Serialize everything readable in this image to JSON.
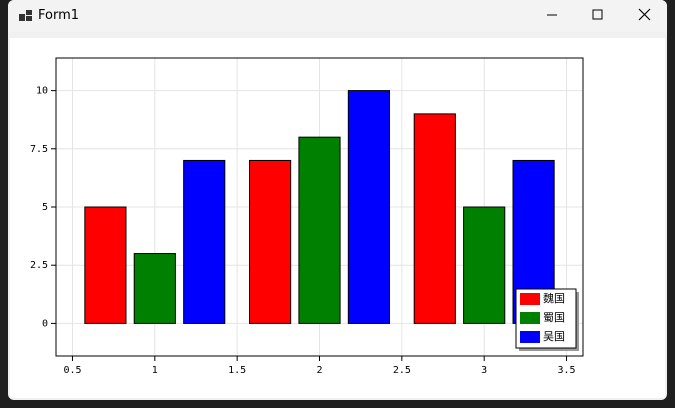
{
  "window": {
    "title": "Form1"
  },
  "chart_data": {
    "type": "bar",
    "x": [
      1,
      2,
      3
    ],
    "series": [
      {
        "name": "魏国",
        "color": "#ff0000",
        "values": [
          5,
          7,
          9
        ]
      },
      {
        "name": "蜀国",
        "color": "#008000",
        "values": [
          3,
          8,
          5
        ]
      },
      {
        "name": "吴国",
        "color": "#0000ff",
        "values": [
          7,
          10,
          7
        ]
      }
    ],
    "xlim": [
      0.4,
      3.6
    ],
    "xticks": [
      0.5,
      1,
      1.5,
      2,
      2.5,
      3,
      3.5
    ],
    "ylim": [
      -1.4,
      11.4
    ],
    "yticks": [
      0,
      2.5,
      5,
      7.5,
      10
    ],
    "grid": true,
    "legend": "bottom-right"
  }
}
